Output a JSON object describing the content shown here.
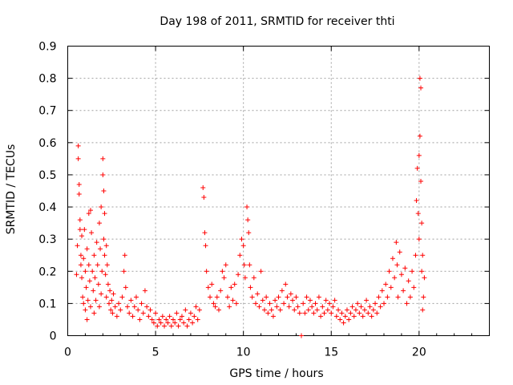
{
  "chart_data": {
    "type": "scatter",
    "title": "Day 198 of 2011, SRMTID for receiver thti",
    "xlabel": "GPS time / hours",
    "ylabel": "SRMTID / TECUs",
    "xlim": [
      0,
      24
    ],
    "ylim": [
      0,
      0.9
    ],
    "x_ticks": [
      0,
      5,
      10,
      15,
      20
    ],
    "x_tick_labels": [
      "0",
      "5",
      "10",
      "15",
      "20"
    ],
    "y_ticks": [
      0,
      0.1,
      0.2,
      0.3,
      0.4,
      0.5,
      0.6,
      0.7,
      0.8,
      0.9
    ],
    "y_tick_labels": [
      "0",
      "0.1",
      "0.2",
      "0.3",
      "0.4",
      "0.5",
      "0.6",
      "0.7",
      "0.8",
      "0.9"
    ],
    "grid": true,
    "marker": "+",
    "color": "#ff0000",
    "series": [
      {
        "name": "SRMTID",
        "points": [
          [
            0.5,
            0.19
          ],
          [
            0.55,
            0.28
          ],
          [
            0.6,
            0.59
          ],
          [
            0.6,
            0.55
          ],
          [
            0.65,
            0.47
          ],
          [
            0.65,
            0.44
          ],
          [
            0.7,
            0.33
          ],
          [
            0.7,
            0.36
          ],
          [
            0.75,
            0.25
          ],
          [
            0.75,
            0.22
          ],
          [
            0.8,
            0.31
          ],
          [
            0.8,
            0.18
          ],
          [
            0.85,
            0.12
          ],
          [
            0.9,
            0.24
          ],
          [
            0.9,
            0.1
          ],
          [
            0.95,
            0.33
          ],
          [
            1.0,
            0.2
          ],
          [
            1.0,
            0.08
          ],
          [
            1.05,
            0.15
          ],
          [
            1.1,
            0.05
          ],
          [
            1.1,
            0.27
          ],
          [
            1.15,
            0.11
          ],
          [
            1.2,
            0.38
          ],
          [
            1.2,
            0.22
          ],
          [
            1.25,
            0.17
          ],
          [
            1.3,
            0.09
          ],
          [
            1.3,
            0.39
          ],
          [
            1.35,
            0.32
          ],
          [
            1.4,
            0.2
          ],
          [
            1.45,
            0.14
          ],
          [
            1.5,
            0.25
          ],
          [
            1.5,
            0.07
          ],
          [
            1.55,
            0.18
          ],
          [
            1.6,
            0.11
          ],
          [
            1.65,
            0.29
          ],
          [
            1.7,
            0.22
          ],
          [
            1.75,
            0.16
          ],
          [
            1.8,
            0.35
          ],
          [
            1.8,
            0.09
          ],
          [
            1.85,
            0.27
          ],
          [
            1.9,
            0.4
          ],
          [
            1.9,
            0.13
          ],
          [
            1.95,
            0.2
          ],
          [
            2.0,
            0.55
          ],
          [
            2.0,
            0.5
          ],
          [
            2.05,
            0.45
          ],
          [
            2.05,
            0.3
          ],
          [
            2.1,
            0.38
          ],
          [
            2.1,
            0.25
          ],
          [
            2.15,
            0.19
          ],
          [
            2.2,
            0.28
          ],
          [
            2.2,
            0.12
          ],
          [
            2.25,
            0.22
          ],
          [
            2.3,
            0.16
          ],
          [
            2.35,
            0.1
          ],
          [
            2.4,
            0.14
          ],
          [
            2.45,
            0.08
          ],
          [
            2.5,
            0.11
          ],
          [
            2.55,
            0.07
          ],
          [
            2.6,
            0.13
          ],
          [
            2.7,
            0.09
          ],
          [
            2.8,
            0.06
          ],
          [
            2.9,
            0.1
          ],
          [
            3.0,
            0.08
          ],
          [
            3.1,
            0.12
          ],
          [
            3.2,
            0.2
          ],
          [
            3.25,
            0.25
          ],
          [
            3.3,
            0.15
          ],
          [
            3.4,
            0.09
          ],
          [
            3.5,
            0.07
          ],
          [
            3.6,
            0.11
          ],
          [
            3.7,
            0.06
          ],
          [
            3.8,
            0.09
          ],
          [
            3.9,
            0.12
          ],
          [
            4.0,
            0.08
          ],
          [
            4.1,
            0.05
          ],
          [
            4.2,
            0.1
          ],
          [
            4.3,
            0.07
          ],
          [
            4.4,
            0.14
          ],
          [
            4.5,
            0.09
          ],
          [
            4.6,
            0.06
          ],
          [
            4.7,
            0.08
          ],
          [
            4.8,
            0.05
          ],
          [
            4.9,
            0.04
          ],
          [
            5.0,
            0.07
          ],
          [
            5.1,
            0.03
          ],
          [
            5.2,
            0.05
          ],
          [
            5.3,
            0.04
          ],
          [
            5.4,
            0.06
          ],
          [
            5.5,
            0.03
          ],
          [
            5.6,
            0.05
          ],
          [
            5.7,
            0.04
          ],
          [
            5.8,
            0.06
          ],
          [
            5.9,
            0.03
          ],
          [
            6.0,
            0.05
          ],
          [
            6.1,
            0.04
          ],
          [
            6.2,
            0.07
          ],
          [
            6.3,
            0.03
          ],
          [
            6.4,
            0.05
          ],
          [
            6.5,
            0.06
          ],
          [
            6.6,
            0.04
          ],
          [
            6.7,
            0.08
          ],
          [
            6.8,
            0.03
          ],
          [
            6.9,
            0.05
          ],
          [
            7.0,
            0.07
          ],
          [
            7.1,
            0.04
          ],
          [
            7.2,
            0.06
          ],
          [
            7.3,
            0.09
          ],
          [
            7.4,
            0.05
          ],
          [
            7.5,
            0.08
          ],
          [
            7.7,
            0.46
          ],
          [
            7.75,
            0.43
          ],
          [
            7.8,
            0.32
          ],
          [
            7.85,
            0.28
          ],
          [
            7.9,
            0.2
          ],
          [
            8.0,
            0.15
          ],
          [
            8.1,
            0.12
          ],
          [
            8.2,
            0.16
          ],
          [
            8.3,
            0.1
          ],
          [
            8.4,
            0.09
          ],
          [
            8.5,
            0.12
          ],
          [
            8.6,
            0.08
          ],
          [
            8.7,
            0.14
          ],
          [
            8.8,
            0.2
          ],
          [
            8.9,
            0.18
          ],
          [
            9.0,
            0.22
          ],
          [
            9.1,
            0.12
          ],
          [
            9.2,
            0.09
          ],
          [
            9.3,
            0.15
          ],
          [
            9.4,
            0.11
          ],
          [
            9.5,
            0.16
          ],
          [
            9.6,
            0.1
          ],
          [
            9.7,
            0.19
          ],
          [
            9.8,
            0.25
          ],
          [
            9.9,
            0.3
          ],
          [
            10.0,
            0.28
          ],
          [
            10.05,
            0.22
          ],
          [
            10.1,
            0.18
          ],
          [
            10.2,
            0.4
          ],
          [
            10.25,
            0.36
          ],
          [
            10.3,
            0.32
          ],
          [
            10.35,
            0.22
          ],
          [
            10.4,
            0.15
          ],
          [
            10.5,
            0.12
          ],
          [
            10.6,
            0.18
          ],
          [
            10.7,
            0.1
          ],
          [
            10.8,
            0.13
          ],
          [
            10.9,
            0.09
          ],
          [
            11.0,
            0.2
          ],
          [
            11.1,
            0.11
          ],
          [
            11.2,
            0.08
          ],
          [
            11.3,
            0.12
          ],
          [
            11.4,
            0.07
          ],
          [
            11.5,
            0.1
          ],
          [
            11.6,
            0.08
          ],
          [
            11.7,
            0.06
          ],
          [
            11.8,
            0.11
          ],
          [
            11.9,
            0.09
          ],
          [
            12.0,
            0.12
          ],
          [
            12.1,
            0.08
          ],
          [
            12.2,
            0.14
          ],
          [
            12.3,
            0.1
          ],
          [
            12.4,
            0.16
          ],
          [
            12.5,
            0.12
          ],
          [
            12.6,
            0.09
          ],
          [
            12.7,
            0.13
          ],
          [
            12.8,
            0.11
          ],
          [
            12.9,
            0.08
          ],
          [
            13.0,
            0.12
          ],
          [
            13.1,
            0.09
          ],
          [
            13.2,
            0.07
          ],
          [
            13.3,
            0.0
          ],
          [
            13.4,
            0.1
          ],
          [
            13.5,
            0.07
          ],
          [
            13.6,
            0.12
          ],
          [
            13.7,
            0.08
          ],
          [
            13.8,
            0.11
          ],
          [
            13.9,
            0.09
          ],
          [
            14.0,
            0.07
          ],
          [
            14.1,
            0.1
          ],
          [
            14.2,
            0.08
          ],
          [
            14.3,
            0.12
          ],
          [
            14.4,
            0.06
          ],
          [
            14.5,
            0.09
          ],
          [
            14.6,
            0.07
          ],
          [
            14.7,
            0.11
          ],
          [
            14.8,
            0.08
          ],
          [
            14.9,
            0.1
          ],
          [
            15.0,
            0.07
          ],
          [
            15.1,
            0.09
          ],
          [
            15.2,
            0.11
          ],
          [
            15.3,
            0.06
          ],
          [
            15.4,
            0.08
          ],
          [
            15.5,
            0.05
          ],
          [
            15.6,
            0.07
          ],
          [
            15.7,
            0.04
          ],
          [
            15.8,
            0.06
          ],
          [
            15.9,
            0.08
          ],
          [
            16.0,
            0.05
          ],
          [
            16.1,
            0.07
          ],
          [
            16.2,
            0.09
          ],
          [
            16.3,
            0.06
          ],
          [
            16.4,
            0.08
          ],
          [
            16.5,
            0.1
          ],
          [
            16.6,
            0.07
          ],
          [
            16.7,
            0.09
          ],
          [
            16.8,
            0.06
          ],
          [
            16.9,
            0.08
          ],
          [
            17.0,
            0.11
          ],
          [
            17.1,
            0.07
          ],
          [
            17.2,
            0.09
          ],
          [
            17.3,
            0.06
          ],
          [
            17.4,
            0.08
          ],
          [
            17.5,
            0.1
          ],
          [
            17.6,
            0.07
          ],
          [
            17.7,
            0.12
          ],
          [
            17.8,
            0.09
          ],
          [
            17.9,
            0.14
          ],
          [
            18.0,
            0.1
          ],
          [
            18.1,
            0.16
          ],
          [
            18.2,
            0.12
          ],
          [
            18.3,
            0.2
          ],
          [
            18.4,
            0.15
          ],
          [
            18.5,
            0.24
          ],
          [
            18.6,
            0.18
          ],
          [
            18.7,
            0.29
          ],
          [
            18.75,
            0.22
          ],
          [
            18.8,
            0.12
          ],
          [
            18.9,
            0.26
          ],
          [
            19.0,
            0.19
          ],
          [
            19.1,
            0.14
          ],
          [
            19.2,
            0.21
          ],
          [
            19.3,
            0.1
          ],
          [
            19.4,
            0.17
          ],
          [
            19.5,
            0.12
          ],
          [
            19.6,
            0.2
          ],
          [
            19.7,
            0.15
          ],
          [
            19.8,
            0.25
          ],
          [
            19.85,
            0.42
          ],
          [
            19.9,
            0.52
          ],
          [
            19.95,
            0.38
          ],
          [
            20.0,
            0.56
          ],
          [
            20.0,
            0.3
          ],
          [
            20.05,
            0.62
          ],
          [
            20.05,
            0.8
          ],
          [
            20.1,
            0.77
          ],
          [
            20.1,
            0.48
          ],
          [
            20.15,
            0.35
          ],
          [
            20.15,
            0.2
          ],
          [
            20.2,
            0.25
          ],
          [
            20.2,
            0.08
          ],
          [
            20.25,
            0.12
          ],
          [
            20.3,
            0.18
          ]
        ]
      }
    ]
  }
}
